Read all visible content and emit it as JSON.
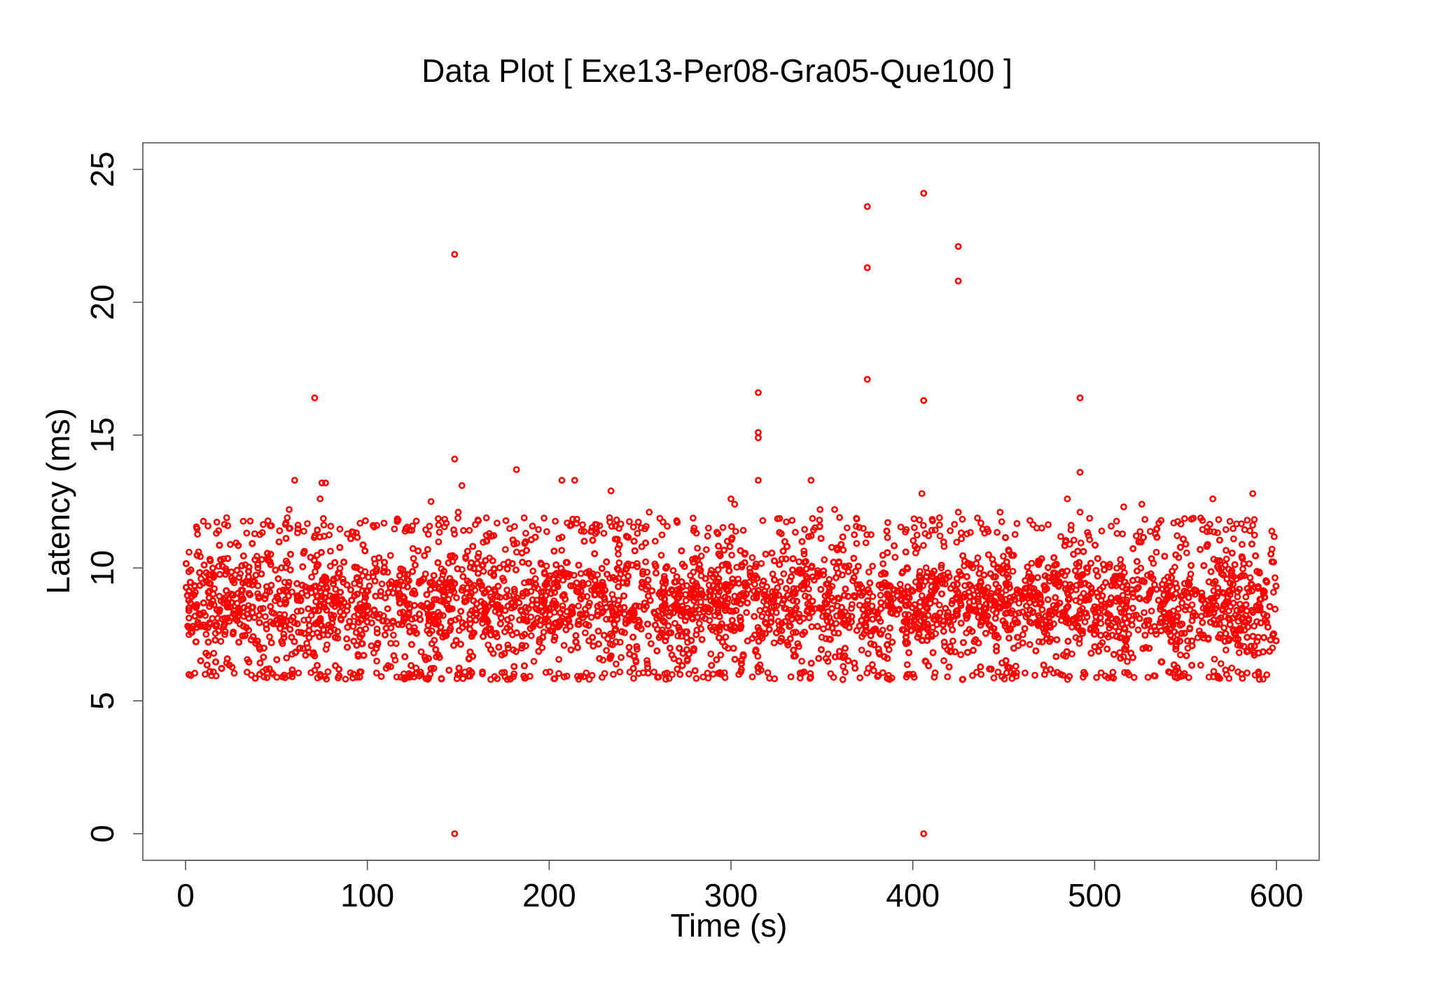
{
  "chart_data": {
    "type": "scatter",
    "title": "Data Plot [ Exe13-Per08-Gra05-Que100 ]",
    "xlabel": "Time (s)",
    "ylabel": "Latency (ms)",
    "xlim": [
      -23.5,
      623.5
    ],
    "ylim": [
      -1,
      26
    ],
    "x_ticks": [
      0,
      100,
      200,
      300,
      400,
      500,
      600
    ],
    "y_ticks": [
      0,
      5,
      10,
      15,
      20,
      25
    ],
    "x_tick_labels": [
      "0",
      "100",
      "200",
      "300",
      "400",
      "500",
      "600"
    ],
    "y_tick_labels": [
      "0",
      "5",
      "10",
      "15",
      "20",
      "25"
    ],
    "grid": false,
    "legend": "none",
    "marker_color": "#ff0000",
    "series": [
      {
        "band": {
          "x_range": [
            0,
            600
          ],
          "y_range": [
            6.1,
            11.2
          ]
        },
        "points": [
          [
            148,
            21.8
          ],
          [
            148,
            14.1
          ],
          [
            148,
            0
          ],
          [
            150,
            12.1
          ],
          [
            152,
            13.1
          ],
          [
            71,
            16.4
          ],
          [
            60,
            13.3
          ],
          [
            75,
            13.2
          ],
          [
            77,
            13.2
          ],
          [
            74,
            12.6
          ],
          [
            57,
            12.2
          ],
          [
            135,
            12.5
          ],
          [
            182,
            13.7
          ],
          [
            207,
            13.3
          ],
          [
            214,
            13.3
          ],
          [
            234,
            12.9
          ],
          [
            255,
            12.1
          ],
          [
            300,
            12.6
          ],
          [
            302,
            12.4
          ],
          [
            315,
            16.6
          ],
          [
            315,
            15.1
          ],
          [
            315,
            14.9
          ],
          [
            315,
            13.3
          ],
          [
            344,
            13.3
          ],
          [
            349,
            12.2
          ],
          [
            357,
            12.2
          ],
          [
            375,
            23.6
          ],
          [
            375,
            21.3
          ],
          [
            375,
            17.1
          ],
          [
            406,
            24.1
          ],
          [
            406,
            16.3
          ],
          [
            405,
            12.8
          ],
          [
            406,
            0
          ],
          [
            425,
            22.1
          ],
          [
            425,
            20.8
          ],
          [
            425,
            12.1
          ],
          [
            448,
            12.1
          ],
          [
            485,
            12.6
          ],
          [
            492,
            16.4
          ],
          [
            492,
            13.6
          ],
          [
            492,
            12.1
          ],
          [
            516,
            12.3
          ],
          [
            526,
            12.4
          ],
          [
            565,
            12.6
          ],
          [
            587,
            12.8
          ]
        ]
      }
    ]
  }
}
